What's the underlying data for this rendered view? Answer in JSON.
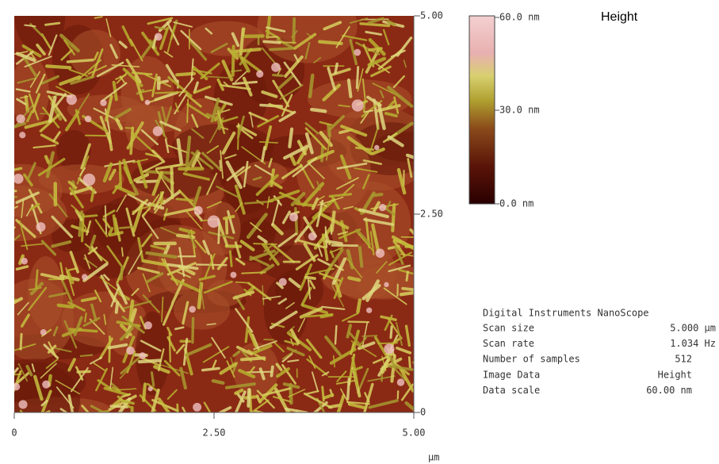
{
  "image": {
    "right_axis": [
      "5.00",
      "2.50",
      "0"
    ],
    "bottom_axis": [
      "0",
      "2.50",
      "5.00"
    ],
    "unit": "µm"
  },
  "colorbar": {
    "labels": [
      "60.0 nm",
      "30.0 nm",
      "0.0 nm"
    ],
    "title": "Height"
  },
  "info": {
    "header": "Digital Instruments NanoScope",
    "rows": [
      [
        "Scan size",
        "5.000 µm"
      ],
      [
        "Scan rate",
        "1.034 Hz"
      ],
      [
        "Number of samples",
        "512"
      ],
      [
        "Image Data",
        "Height"
      ],
      [
        "Data scale",
        "60.00 nm"
      ]
    ]
  }
}
